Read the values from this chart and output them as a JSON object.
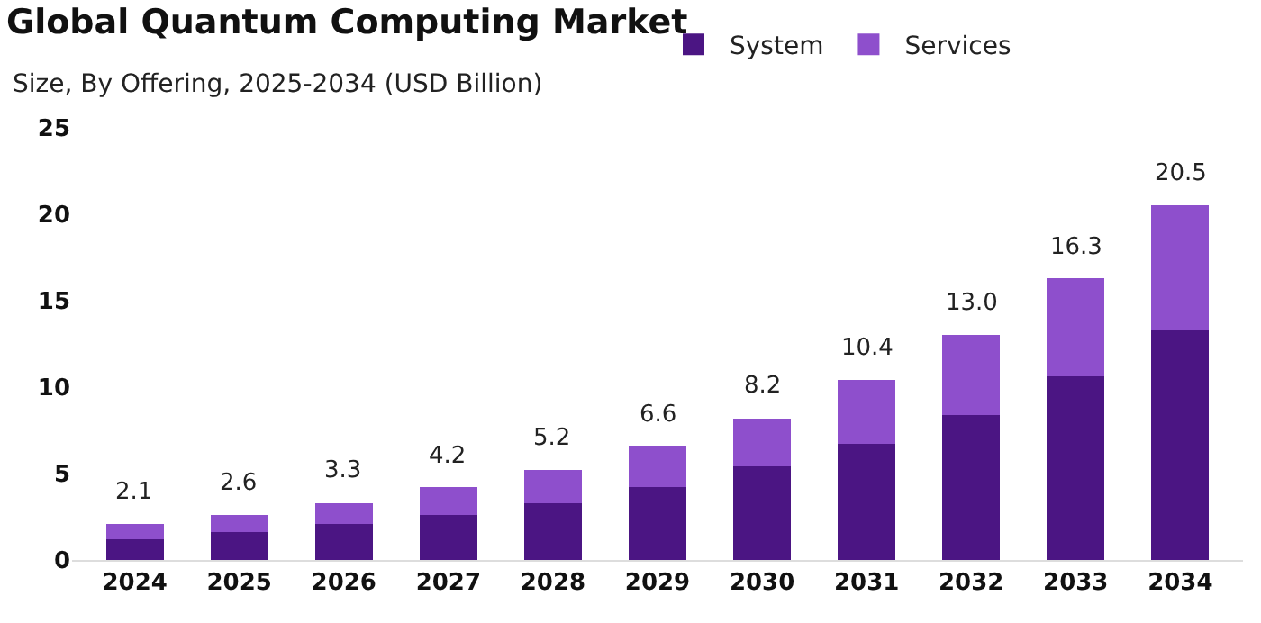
{
  "chart_data": {
    "type": "bar",
    "title": "Global Quantum Computing Market",
    "subtitle": "Size, By Offering, 2025-2034 (USD Billion)",
    "categories": [
      "2024",
      "2025",
      "2026",
      "2027",
      "2028",
      "2029",
      "2030",
      "2031",
      "2032",
      "2033",
      "2034"
    ],
    "stacked": true,
    "series": [
      {
        "name": "System",
        "color": "#4b1583",
        "values": [
          1.2,
          1.6,
          2.1,
          2.6,
          3.3,
          4.2,
          5.4,
          6.7,
          8.4,
          10.6,
          13.3
        ]
      },
      {
        "name": "Services",
        "color": "#8e4fcc",
        "values": [
          0.9,
          1.0,
          1.2,
          1.6,
          1.9,
          2.4,
          2.8,
          3.7,
          4.6,
          5.7,
          7.2
        ]
      }
    ],
    "totals": [
      "2.1",
      "2.6",
      "3.3",
      "4.2",
      "5.2",
      "6.6",
      "8.2",
      "10.4",
      "13.0",
      "16.3",
      "20.5"
    ],
    "ylim": [
      0,
      25
    ],
    "yticks": [
      0,
      5,
      10,
      15,
      20,
      25
    ],
    "legend": "top right"
  }
}
